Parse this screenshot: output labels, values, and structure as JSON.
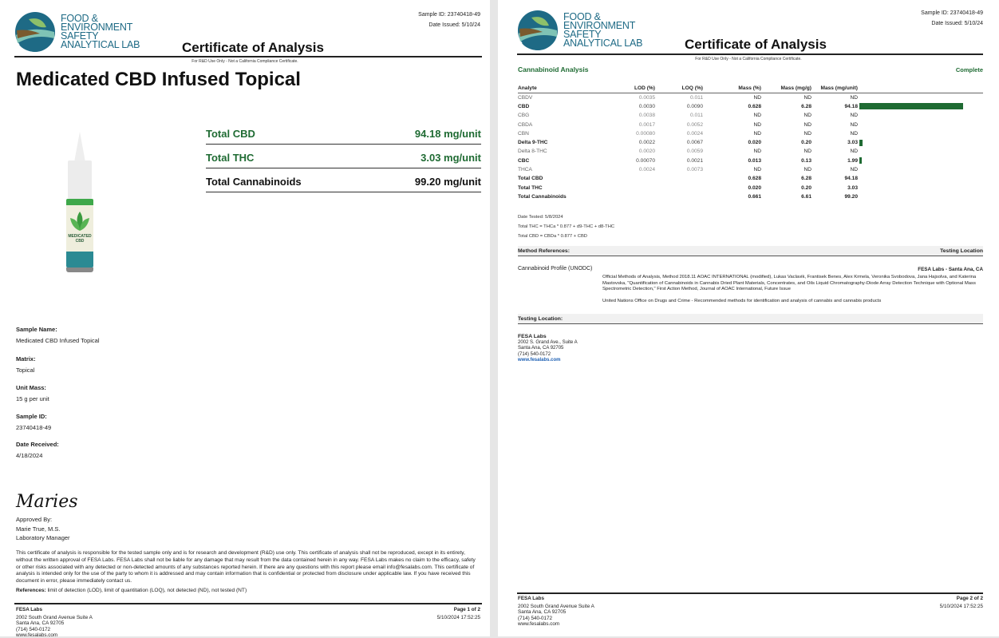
{
  "logo": {
    "lines": [
      "FOOD &",
      "ENVIRONMENT",
      "SAFETY",
      "ANALYTICAL LAB"
    ]
  },
  "header": {
    "title": "Certificate of Analysis",
    "sample_id": "Sample ID: 23740418-49",
    "date_issued": "Date Issued: 5/10/24",
    "notice": "For R&D Use Only - Not a California Compliance Certificate."
  },
  "colors": {
    "accent": "#1f6b33",
    "logo_blue": "#1e6a85"
  },
  "page1": {
    "product_title": "Medicated CBD Infused Topical",
    "product_label": "MEDICATED CBD",
    "summary": [
      {
        "label": "Total CBD",
        "value": "94.18 mg/unit"
      },
      {
        "label": "Total THC",
        "value": "3.03 mg/unit"
      },
      {
        "label": "Total Cannabinoids",
        "value": "99.20 mg/unit"
      }
    ],
    "fields": [
      {
        "label": "Sample Name:",
        "value": "Medicated CBD Infused Topical"
      },
      {
        "label": "Matrix:",
        "value": "Topical"
      },
      {
        "label": "Unit Mass:",
        "value": "15 g per unit"
      },
      {
        "label": "Sample ID:",
        "value": "23740418-49"
      },
      {
        "label": "Date Received:",
        "value": "4/18/2024"
      }
    ],
    "signature": "Maries",
    "approved_by": "Approved By:",
    "approver_name": "Marie True, M.S.",
    "approver_title": "Laboratory Manager",
    "disclaimer": "This certificate of analysis is responsible for the tested sample only and is for research and development (R&D) use only. This certificate of analysis shall not be reproduced, except in its entirety, without the written approval of FESA Labs. FESA Labs shall not be liable for any damage that may result from the data contained herein in any way. FESA Labs makes no claim to the efficacy, safety or other risks associated with any detected or non-detected amounts of any substances reported herein. If there are any questions with this report please email info@fesalabs.com. This certificate of analysis is intended only for the use of the party to whom it is addressed and may contain information that is confidential or protected from disclosure under applicable law. If you have received this document in error, please immediately contact us.",
    "references_label": "References:",
    "references": "limit of detection (LOD), limit of quantitation (LOQ), not detected (ND), not tested (NT)",
    "page": "Page 1 of 2"
  },
  "footer": {
    "company": "FESA Labs",
    "address1": "2002 South Grand Avenue Suite A",
    "address2": "Santa Ana, CA 92705",
    "phone": "(714) 540-0172",
    "web": "www.fesalabs.com",
    "timestamp": "5/10/2024 17:52:25"
  },
  "page2": {
    "section_title": "Cannabinoid Analysis",
    "status": "Complete",
    "columns": [
      "Analyte",
      "LOD (%)",
      "LOQ (%)",
      "Mass (%)",
      "Mass (mg/g)",
      "Mass (mg/unit)"
    ],
    "rows": [
      {
        "analyte": "CBDV",
        "lod": "0.0035",
        "loq": "0.011",
        "pct": "ND",
        "mgg": "ND",
        "mgu": "ND",
        "bar": 0,
        "bold": false
      },
      {
        "analyte": "CBD",
        "lod": "0.0030",
        "loq": "0.0090",
        "pct": "0.628",
        "mgg": "6.28",
        "mgu": "94.18",
        "bar": 94.18,
        "bold": true
      },
      {
        "analyte": "CBG",
        "lod": "0.0038",
        "loq": "0.011",
        "pct": "ND",
        "mgg": "ND",
        "mgu": "ND",
        "bar": 0,
        "bold": false
      },
      {
        "analyte": "CBDA",
        "lod": "0.0017",
        "loq": "0.0052",
        "pct": "ND",
        "mgg": "ND",
        "mgu": "ND",
        "bar": 0,
        "bold": false
      },
      {
        "analyte": "CBN",
        "lod": "0.00080",
        "loq": "0.0024",
        "pct": "ND",
        "mgg": "ND",
        "mgu": "ND",
        "bar": 0,
        "bold": false
      },
      {
        "analyte": "Delta 9-THC",
        "lod": "0.0022",
        "loq": "0.0067",
        "pct": "0.020",
        "mgg": "0.20",
        "mgu": "3.03",
        "bar": 3.03,
        "bold": true
      },
      {
        "analyte": "Delta 8-THC",
        "lod": "0.0020",
        "loq": "0.0059",
        "pct": "ND",
        "mgg": "ND",
        "mgu": "ND",
        "bar": 0,
        "bold": false
      },
      {
        "analyte": "CBC",
        "lod": "0.00070",
        "loq": "0.0021",
        "pct": "0.013",
        "mgg": "0.13",
        "mgu": "1.99",
        "bar": 1.99,
        "bold": true
      },
      {
        "analyte": "THCA",
        "lod": "0.0024",
        "loq": "0.0073",
        "pct": "ND",
        "mgg": "ND",
        "mgu": "ND",
        "bar": 0,
        "bold": false
      },
      {
        "analyte": "Total CBD",
        "lod": "",
        "loq": "",
        "pct": "0.628",
        "mgg": "6.28",
        "mgu": "94.18",
        "bar": 0,
        "bold": true
      },
      {
        "analyte": "Total THC",
        "lod": "",
        "loq": "",
        "pct": "0.020",
        "mgg": "0.20",
        "mgu": "3.03",
        "bar": 0,
        "bold": true
      },
      {
        "analyte": "Total Cannabinoids",
        "lod": "",
        "loq": "",
        "pct": "0.661",
        "mgg": "6.61",
        "mgu": "99.20",
        "bar": 0,
        "bold": true
      }
    ],
    "date_tested": "Date Tested: 5/8/2024",
    "formula_thc": "Total THC = THCa * 0.877 + d9-THC + d8-THC",
    "formula_cbd": "Total CBD = CBDa * 0.877 + CBD",
    "method_header": "Method References:",
    "testing_location_header": "Testing Location",
    "method_name": "Cannabinoid Profile (UNODC)",
    "method_location": "FESA Labs - Santa Ana, CA",
    "method_ref1": "Official Methods of Analysis, Method 2018.11 AOAC INTERNATIONAL (modified), Lukas Vaclavik, Frantisek Benes, Alex Krmela, Veronika Svobodova, Jana Hajsolva, and Katerina Mastovska, \"Quantification of Cannabinoids in Cannabis Dried Plant Materials, Concentrates, and Oils Liquid Chromatography-Diode Array Detection Technique with Optional Mass Spectrometric Detection,\" First Action Method, Journal of AOAC International, Future Issue",
    "method_ref2": "United Nations Office on Drugs and Crime - Recommended methods for identification and analysis of cannabis and cannabis products",
    "location_header": "Testing Location:",
    "location": {
      "name": "FESA Labs",
      "address1": "2002 S. Grand Ave., Suite A",
      "address2": "Santa Ana, CA 92705",
      "phone": "(714) 540-0172",
      "web": "www.fesalabs.com"
    },
    "page": "Page 2 of 2"
  }
}
